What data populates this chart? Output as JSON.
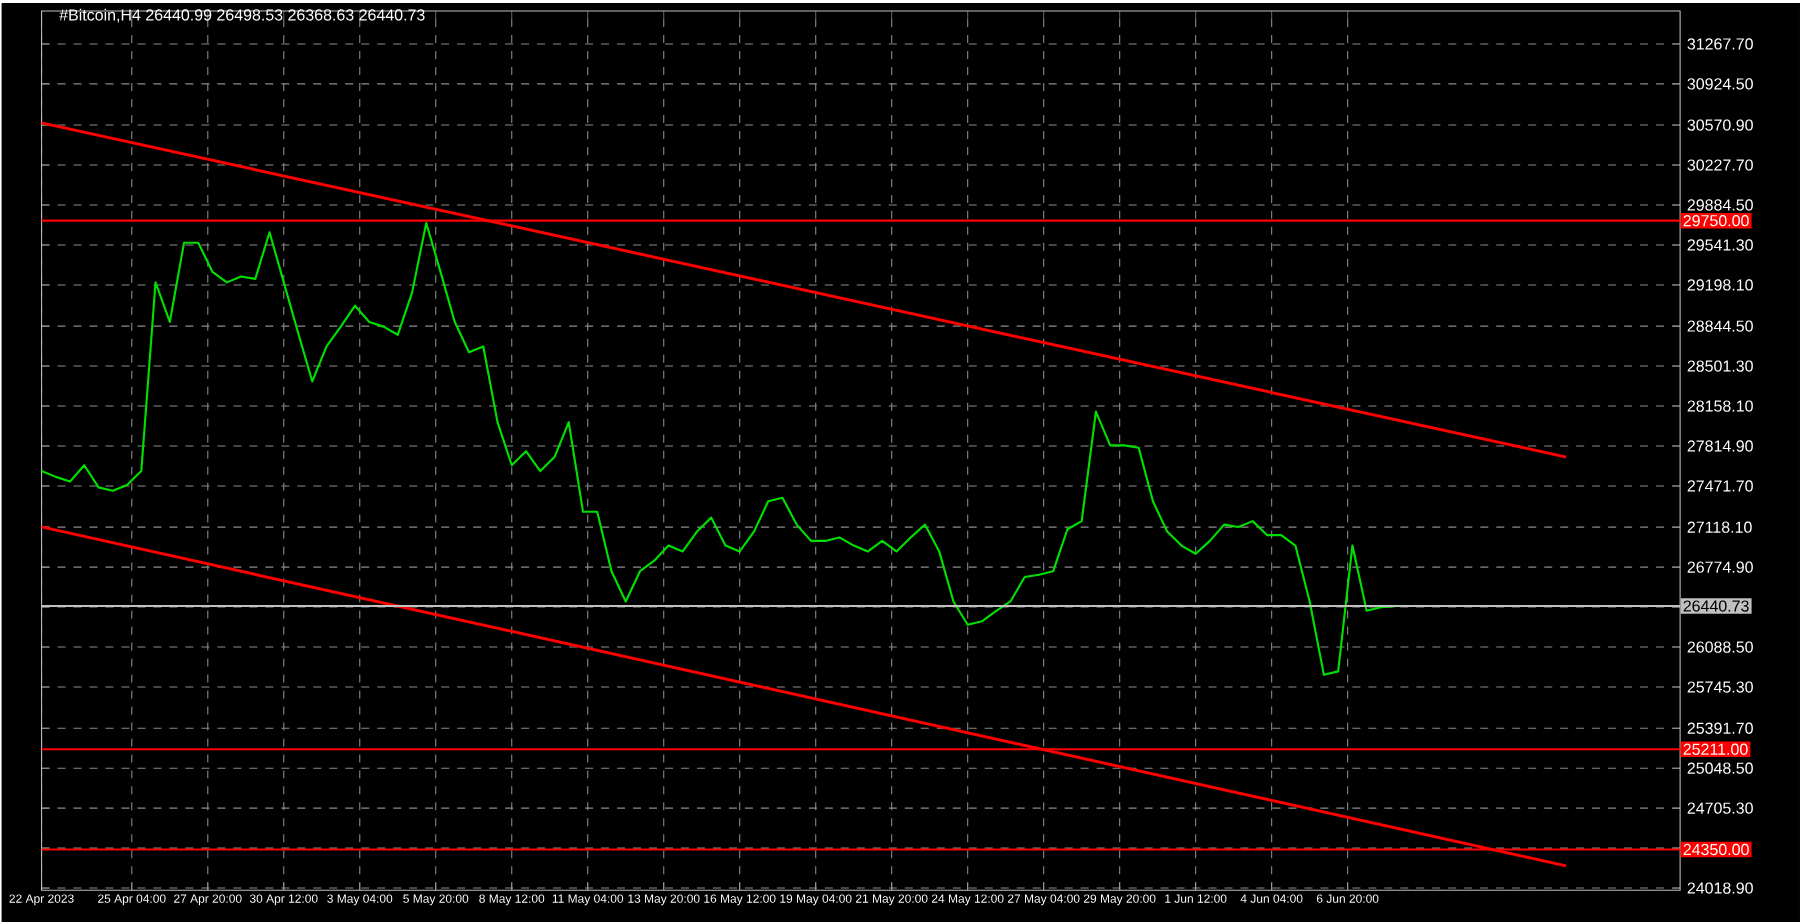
{
  "chart_data": {
    "type": "line",
    "title": "#Bitcoin,H4  26440.99 26498.53 26368.63 26440.73",
    "xlim": [
      "2023-04-22T00:00",
      "2023-06-18T12:00"
    ],
    "ylim": [
      24000,
      31550
    ],
    "xticks": [
      {
        "value": "2023-04-22T00:00",
        "label": "22 Apr 2023"
      },
      {
        "value": "2023-04-25T04:00",
        "label": "25 Apr 04:00"
      },
      {
        "value": "2023-04-27T20:00",
        "label": "27 Apr 20:00"
      },
      {
        "value": "2023-04-30T12:00",
        "label": "30 Apr 12:00"
      },
      {
        "value": "2023-05-03T04:00",
        "label": "3 May 04:00"
      },
      {
        "value": "2023-05-05T20:00",
        "label": "5 May 20:00"
      },
      {
        "value": "2023-05-08T12:00",
        "label": "8 May 12:00"
      },
      {
        "value": "2023-05-11T04:00",
        "label": "11 May 04:00"
      },
      {
        "value": "2023-05-13T20:00",
        "label": "13 May 20:00"
      },
      {
        "value": "2023-05-16T12:00",
        "label": "16 May 12:00"
      },
      {
        "value": "2023-05-19T04:00",
        "label": "19 May 04:00"
      },
      {
        "value": "2023-05-21T20:00",
        "label": "21 May 20:00"
      },
      {
        "value": "2023-05-24T12:00",
        "label": "24 May 12:00"
      },
      {
        "value": "2023-05-27T04:00",
        "label": "27 May 04:00"
      },
      {
        "value": "2023-05-29T20:00",
        "label": "29 May 20:00"
      },
      {
        "value": "2023-06-01T12:00",
        "label": "1 Jun 12:00"
      },
      {
        "value": "2023-06-04T04:00",
        "label": "4 Jun 04:00"
      },
      {
        "value": "2023-06-06T20:00",
        "label": "6 Jun 20:00"
      }
    ],
    "yticks": [
      {
        "value": 24018.9,
        "label": "24018.90"
      },
      {
        "value": 24362.1,
        "label": null
      },
      {
        "value": 24705.3,
        "label": "24705.30"
      },
      {
        "value": 25048.5,
        "label": "25048.50"
      },
      {
        "value": 25391.7,
        "label": "25391.70"
      },
      {
        "value": 25745.3,
        "label": "25745.30"
      },
      {
        "value": 26088.5,
        "label": "26088.50"
      },
      {
        "value": 26431.7,
        "label": null
      },
      {
        "value": 26774.9,
        "label": "26774.90"
      },
      {
        "value": 27118.1,
        "label": "27118.10"
      },
      {
        "value": 27471.7,
        "label": "27471.70"
      },
      {
        "value": 27814.9,
        "label": "27814.90"
      },
      {
        "value": 28158.1,
        "label": "28158.10"
      },
      {
        "value": 28501.3,
        "label": "28501.30"
      },
      {
        "value": 28844.5,
        "label": "28844.50"
      },
      {
        "value": 29198.1,
        "label": "29198.10"
      },
      {
        "value": 29541.3,
        "label": "29541.30"
      },
      {
        "value": 29884.5,
        "label": "29884.50"
      },
      {
        "value": 30227.7,
        "label": "30227.70"
      },
      {
        "value": 30570.9,
        "label": "30570.90"
      },
      {
        "value": 30924.5,
        "label": "30924.50"
      },
      {
        "value": 31267.7,
        "label": "31267.70"
      }
    ],
    "grid": true,
    "series": [
      {
        "color": "#00e000",
        "x": [
          "2023-04-22T00:00",
          "2023-04-22T12:00",
          "2023-04-23T00:00",
          "2023-04-23T12:00",
          "2023-04-24T00:00",
          "2023-04-24T12:00",
          "2023-04-25T00:00",
          "2023-04-25T12:00",
          "2023-04-26T00:00",
          "2023-04-26T12:00",
          "2023-04-27T00:00",
          "2023-04-27T12:00",
          "2023-04-28T00:00",
          "2023-04-28T12:00",
          "2023-04-29T00:00",
          "2023-04-29T12:00",
          "2023-04-30T00:00",
          "2023-04-30T12:00",
          "2023-05-01T00:00",
          "2023-05-01T12:00",
          "2023-05-02T00:00",
          "2023-05-02T12:00",
          "2023-05-03T00:00",
          "2023-05-03T12:00",
          "2023-05-04T00:00",
          "2023-05-04T12:00",
          "2023-05-05T00:00",
          "2023-05-05T12:00",
          "2023-05-06T00:00",
          "2023-05-06T12:00",
          "2023-05-07T00:00",
          "2023-05-07T12:00",
          "2023-05-08T00:00",
          "2023-05-08T12:00",
          "2023-05-09T00:00",
          "2023-05-09T12:00",
          "2023-05-10T00:00",
          "2023-05-10T12:00",
          "2023-05-11T00:00",
          "2023-05-11T12:00",
          "2023-05-12T00:00",
          "2023-05-12T12:00",
          "2023-05-13T00:00",
          "2023-05-13T12:00",
          "2023-05-14T00:00",
          "2023-05-14T12:00",
          "2023-05-15T00:00",
          "2023-05-15T12:00",
          "2023-05-16T00:00",
          "2023-05-16T12:00",
          "2023-05-17T00:00",
          "2023-05-17T12:00",
          "2023-05-18T00:00",
          "2023-05-18T12:00",
          "2023-05-19T00:00",
          "2023-05-19T12:00",
          "2023-05-20T00:00",
          "2023-05-20T12:00",
          "2023-05-21T00:00",
          "2023-05-21T12:00",
          "2023-05-22T00:00",
          "2023-05-22T12:00",
          "2023-05-23T00:00",
          "2023-05-23T12:00",
          "2023-05-24T00:00",
          "2023-05-24T12:00",
          "2023-05-25T00:00",
          "2023-05-25T12:00",
          "2023-05-26T00:00",
          "2023-05-26T12:00",
          "2023-05-27T00:00",
          "2023-05-27T12:00",
          "2023-05-28T00:00",
          "2023-05-28T12:00",
          "2023-05-29T00:00",
          "2023-05-29T12:00",
          "2023-05-30T00:00",
          "2023-05-30T12:00",
          "2023-05-31T00:00",
          "2023-05-31T12:00",
          "2023-06-01T00:00",
          "2023-06-01T12:00",
          "2023-06-02T00:00",
          "2023-06-02T12:00",
          "2023-06-03T00:00",
          "2023-06-03T12:00",
          "2023-06-04T00:00",
          "2023-06-04T12:00",
          "2023-06-05T00:00",
          "2023-06-05T12:00",
          "2023-06-06T00:00",
          "2023-06-06T12:00",
          "2023-06-07T00:00",
          "2023-06-07T12:00",
          "2023-06-08T00:00",
          "2023-06-08T12:00"
        ],
        "values": [
          27600,
          27550,
          27510,
          27650,
          27460,
          27430,
          27480,
          27600,
          29220,
          28880,
          29560,
          29560,
          29310,
          29220,
          29270,
          29250,
          29650,
          29220,
          28790,
          28370,
          28670,
          28840,
          29020,
          28880,
          28840,
          28770,
          29130,
          29730,
          29310,
          28880,
          28620,
          28670,
          28020,
          27650,
          27770,
          27600,
          27720,
          28020,
          27250,
          27250,
          26740,
          26480,
          26740,
          26830,
          26960,
          26910,
          27080,
          27200,
          26960,
          26910,
          27080,
          27340,
          27370,
          27140,
          27000,
          27000,
          27030,
          26960,
          26910,
          27000,
          26910,
          27030,
          27140,
          26910,
          26480,
          26280,
          26310,
          26400,
          26480,
          26690,
          26710,
          26740,
          27100,
          27170,
          28110,
          27820,
          27820,
          27800,
          27340,
          27080,
          26960,
          26890,
          27000,
          27140,
          27120,
          27170,
          27050,
          27050,
          26960,
          26480,
          25850,
          25880,
          26960,
          26400,
          26430,
          26440
        ]
      },
      {
        "color": "#ff0000",
        "x": [
          "2023-04-22T00:00",
          "2023-06-14T12:00"
        ],
        "values": [
          30590,
          27720
        ]
      },
      {
        "color": "#ff0000",
        "x": [
          "2023-04-22T00:00",
          "2023-06-14T12:00"
        ],
        "values": [
          27120,
          24210
        ]
      }
    ],
    "ref_lines": [
      {
        "axis": "y",
        "value": 29750,
        "label": "29750.00",
        "color": "#ff0000"
      },
      {
        "axis": "y",
        "value": 25211,
        "label": "25211.00",
        "color": "#ff0000"
      },
      {
        "axis": "y",
        "value": 24350,
        "label": "24350.00",
        "color": "#ff0000"
      },
      {
        "axis": "y",
        "value": 26440.73,
        "label": "26440.73",
        "color": "#c0c0c0"
      }
    ]
  }
}
